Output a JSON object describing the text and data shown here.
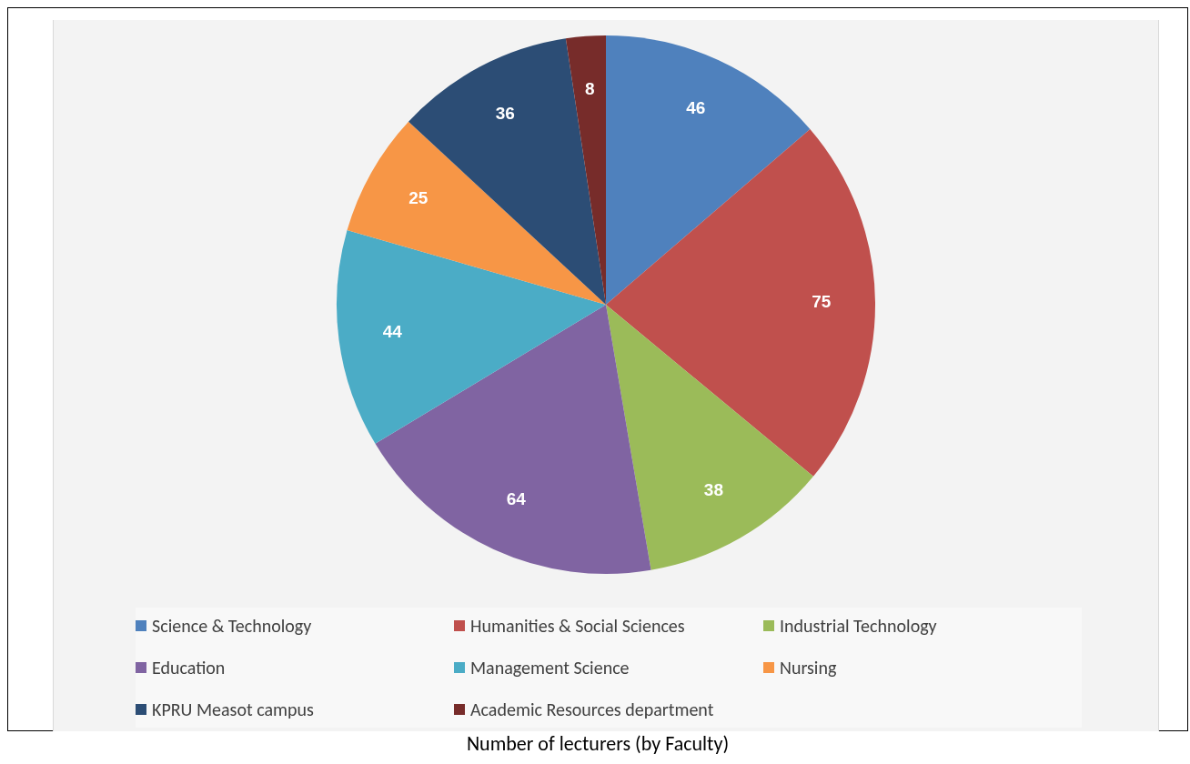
{
  "chart_data": {
    "type": "pie",
    "categories": [
      "Science & Technology",
      "Humanities & Social Sciences",
      "Industrial Technology",
      "Education",
      "Management Science",
      "Nursing",
      "KPRU Measot campus",
      "Academic Resources department"
    ],
    "values": [
      46,
      75,
      38,
      64,
      44,
      25,
      36,
      8
    ],
    "colors": [
      "#4f81bd",
      "#c0504d",
      "#9bbb59",
      "#8064a2",
      "#4bacc6",
      "#f79646",
      "#2c4d75",
      "#772c2a"
    ],
    "data_labels": true,
    "legend": "bottom",
    "annotations": [
      "Number of lecturers (by Faculty)"
    ]
  }
}
